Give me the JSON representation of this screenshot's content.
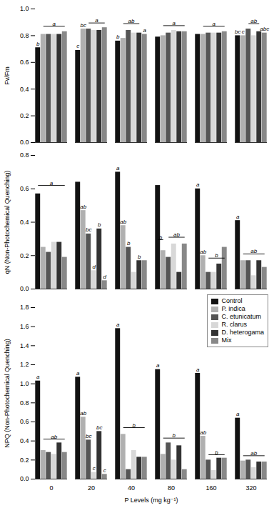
{
  "chart_data": [
    {
      "type": "bar",
      "ylabel": "Fv/Fm",
      "categories": [
        "0",
        "20",
        "40",
        "80",
        "160",
        "320"
      ],
      "series": [
        {
          "name": "Control",
          "color": "#111111",
          "values": [
            0.71,
            0.69,
            0.76,
            0.79,
            0.81,
            0.8
          ]
        },
        {
          "name": "P. indica",
          "color": "#b0b0b0",
          "values": [
            0.81,
            0.85,
            0.78,
            0.8,
            0.81,
            0.8
          ]
        },
        {
          "name": "C. etunicatum",
          "color": "#555555",
          "values": [
            0.81,
            0.85,
            0.84,
            0.82,
            0.82,
            0.85
          ]
        },
        {
          "name": "R. clarus",
          "color": "#d8d8d8",
          "values": [
            0.81,
            0.84,
            0.82,
            0.84,
            0.82,
            0.8
          ]
        },
        {
          "name": "D. heterogama",
          "color": "#333333",
          "values": [
            0.81,
            0.84,
            0.82,
            0.83,
            0.82,
            0.83
          ]
        },
        {
          "name": "Mix",
          "color": "#888888",
          "values": [
            0.83,
            0.86,
            0.81,
            0.83,
            0.83,
            0.82
          ]
        }
      ],
      "ylim": [
        0.0,
        1.0
      ],
      "yticks": [
        {
          "value": 0.0,
          "label": "0.0"
        },
        0.2,
        0.4,
        0.6,
        0.8,
        {
          "value": 1.0,
          "label": "1.0"
        }
      ],
      "tick_labels": "y",
      "annotations": [
        {
          "text": "b",
          "category": "0",
          "bar": 0
        },
        {
          "text": "a",
          "category": "0",
          "bracket": [
            1,
            5
          ],
          "y": 0.87
        },
        {
          "text": "c",
          "category": "20",
          "bar": 0
        },
        {
          "text": "bc",
          "category": "20",
          "bar": 1
        },
        {
          "text": "a",
          "category": "20",
          "bracket": [
            2,
            5
          ],
          "y": 0.895
        },
        {
          "text": "b",
          "category": "40",
          "bar": 0
        },
        {
          "text": "ab",
          "category": "40",
          "bracket": [
            1,
            4
          ],
          "y": 0.89
        },
        {
          "text": "a",
          "category": "40",
          "bar": 5
        },
        {
          "text": "a",
          "category": "80",
          "bracket": [
            1,
            5
          ],
          "y": 0.875
        },
        {
          "text": "a",
          "category": "160",
          "bracket": [
            1,
            5
          ],
          "y": 0.87
        },
        {
          "text": "bc",
          "category": "320",
          "bar": 0
        },
        {
          "text": "c",
          "category": "320",
          "bar": 1
        },
        {
          "text": "ab",
          "category": "320",
          "bracket": [
            2,
            4
          ],
          "y": 0.89
        },
        {
          "text": "abc",
          "category": "320",
          "bar": 5
        }
      ]
    },
    {
      "type": "bar",
      "ylabel": "qN (Non-Photochemical Quenching)",
      "categories": [
        "0",
        "20",
        "40",
        "80",
        "160",
        "320"
      ],
      "series": [
        {
          "name": "Control",
          "color": "#111111",
          "values": [
            0.57,
            0.64,
            0.7,
            0.62,
            0.6,
            0.41
          ]
        },
        {
          "name": "P. indica",
          "color": "#b0b0b0",
          "values": [
            0.25,
            0.47,
            0.38,
            0.23,
            0.2,
            0.17
          ]
        },
        {
          "name": "C. etunicatum",
          "color": "#555555",
          "values": [
            0.22,
            0.33,
            0.25,
            0.19,
            0.1,
            0.17
          ]
        },
        {
          "name": "R. clarus",
          "color": "#d8d8d8",
          "values": [
            0.28,
            0.11,
            0.1,
            0.27,
            0.1,
            0.08
          ]
        },
        {
          "name": "D. heterogama",
          "color": "#333333",
          "values": [
            0.28,
            0.36,
            0.17,
            0.1,
            0.15,
            0.17
          ]
        },
        {
          "name": "Mix",
          "color": "#888888",
          "values": [
            0.19,
            0.05,
            0.17,
            0.27,
            0.25,
            0.13
          ]
        }
      ],
      "ylim": [
        0.0,
        0.8
      ],
      "yticks": [
        {
          "value": 0.0,
          "label": "0.0"
        },
        0.2,
        0.4,
        0.6,
        0.8
      ],
      "tick_labels": "y",
      "annotations": [
        {
          "text": "a",
          "category": "0",
          "bracket": [
            0,
            5
          ],
          "y": 0.62
        },
        {
          "text": "ab",
          "category": "20",
          "bar": 1
        },
        {
          "text": "bc",
          "category": "20",
          "bar": 2
        },
        {
          "text": "d",
          "category": "20",
          "bar": 3
        },
        {
          "text": "b",
          "category": "20",
          "bar": 4
        },
        {
          "text": "d",
          "category": "20",
          "bar": 5
        },
        {
          "text": "a",
          "category": "40",
          "bar": 0
        },
        {
          "text": "ab",
          "category": "40",
          "bar": 1
        },
        {
          "text": "b",
          "category": "40",
          "bar": 2
        },
        {
          "text": "b",
          "category": "40",
          "bar": 4
        },
        {
          "text": "b",
          "category": "80",
          "bracket": [
            0,
            1
          ],
          "y": 0.295
        },
        {
          "text": "ab",
          "category": "80",
          "bracket": [
            2,
            5
          ],
          "y": 0.31
        },
        {
          "text": "a",
          "category": "160",
          "bar": 0
        },
        {
          "text": "ab",
          "category": "160",
          "bar": 1
        },
        {
          "text": "b",
          "category": "160",
          "bracket": [
            2,
            5
          ],
          "y": 0.185
        },
        {
          "text": "a",
          "category": "320",
          "bar": 0
        },
        {
          "text": "ab",
          "category": "320",
          "bracket": [
            1,
            5
          ],
          "y": 0.21
        }
      ]
    },
    {
      "type": "bar",
      "ylabel": "NPQ (Non-Photochemical Quenching)",
      "xlabel": "P Levels (mg kg⁻¹)",
      "categories": [
        "0",
        "20",
        "40",
        "80",
        "160",
        "320"
      ],
      "series": [
        {
          "name": "Control",
          "color": "#111111",
          "values": [
            1.03,
            1.07,
            1.58,
            1.15,
            1.11,
            0.64
          ]
        },
        {
          "name": "P. indica",
          "color": "#b0b0b0",
          "values": [
            0.3,
            0.65,
            0.47,
            0.26,
            0.45,
            0.19
          ]
        },
        {
          "name": "C. etunicatum",
          "color": "#555555",
          "values": [
            0.28,
            0.41,
            0.1,
            0.38,
            0.2,
            0.2
          ]
        },
        {
          "name": "R. clarus",
          "color": "#d8d8d8",
          "values": [
            0.26,
            0.07,
            0.3,
            0.2,
            0.09,
            0.12
          ]
        },
        {
          "name": "D. heterogama",
          "color": "#333333",
          "values": [
            0.38,
            0.5,
            0.23,
            0.35,
            0.22,
            0.18
          ]
        },
        {
          "name": "Mix",
          "color": "#888888",
          "values": [
            0.28,
            0.05,
            0.23,
            0.1,
            0.22,
            0.18
          ]
        }
      ],
      "ylim": [
        0.0,
        1.8
      ],
      "yticks": [
        {
          "value": 0.0,
          "label": "0.0"
        },
        0.2,
        0.4,
        0.6,
        0.8,
        {
          "value": 1.0,
          "label": "1.0"
        },
        1.2,
        1.4,
        1.6,
        1.8
      ],
      "legend": "upper right",
      "annotations": [
        {
          "text": "a",
          "category": "0",
          "bar": 0
        },
        {
          "text": "ab",
          "category": "0",
          "bracket": [
            1,
            5
          ],
          "y": 0.42
        },
        {
          "text": "a",
          "category": "20",
          "bar": 0
        },
        {
          "text": "ab",
          "category": "20",
          "bar": 1
        },
        {
          "text": "bc",
          "category": "20",
          "bar": 2
        },
        {
          "text": "c",
          "category": "20",
          "bar": 3
        },
        {
          "text": "bc",
          "category": "20",
          "bar": 4
        },
        {
          "text": "c",
          "category": "20",
          "bar": 5
        },
        {
          "text": "a",
          "category": "40",
          "bar": 0
        },
        {
          "text": "b",
          "category": "40",
          "bracket": [
            1,
            5
          ],
          "y": 0.54
        },
        {
          "text": "a",
          "category": "80",
          "bar": 0
        },
        {
          "text": "b",
          "category": "80",
          "bracket": [
            1,
            5
          ],
          "y": 0.43
        },
        {
          "text": "a",
          "category": "160",
          "bar": 0
        },
        {
          "text": "ab",
          "category": "160",
          "bar": 1
        },
        {
          "text": "b",
          "category": "160",
          "bracket": [
            2,
            5
          ],
          "y": 0.255
        },
        {
          "text": "a",
          "category": "320",
          "bar": 0
        },
        {
          "text": "ab",
          "category": "320",
          "bracket": [
            1,
            5
          ],
          "y": 0.245
        }
      ]
    }
  ]
}
